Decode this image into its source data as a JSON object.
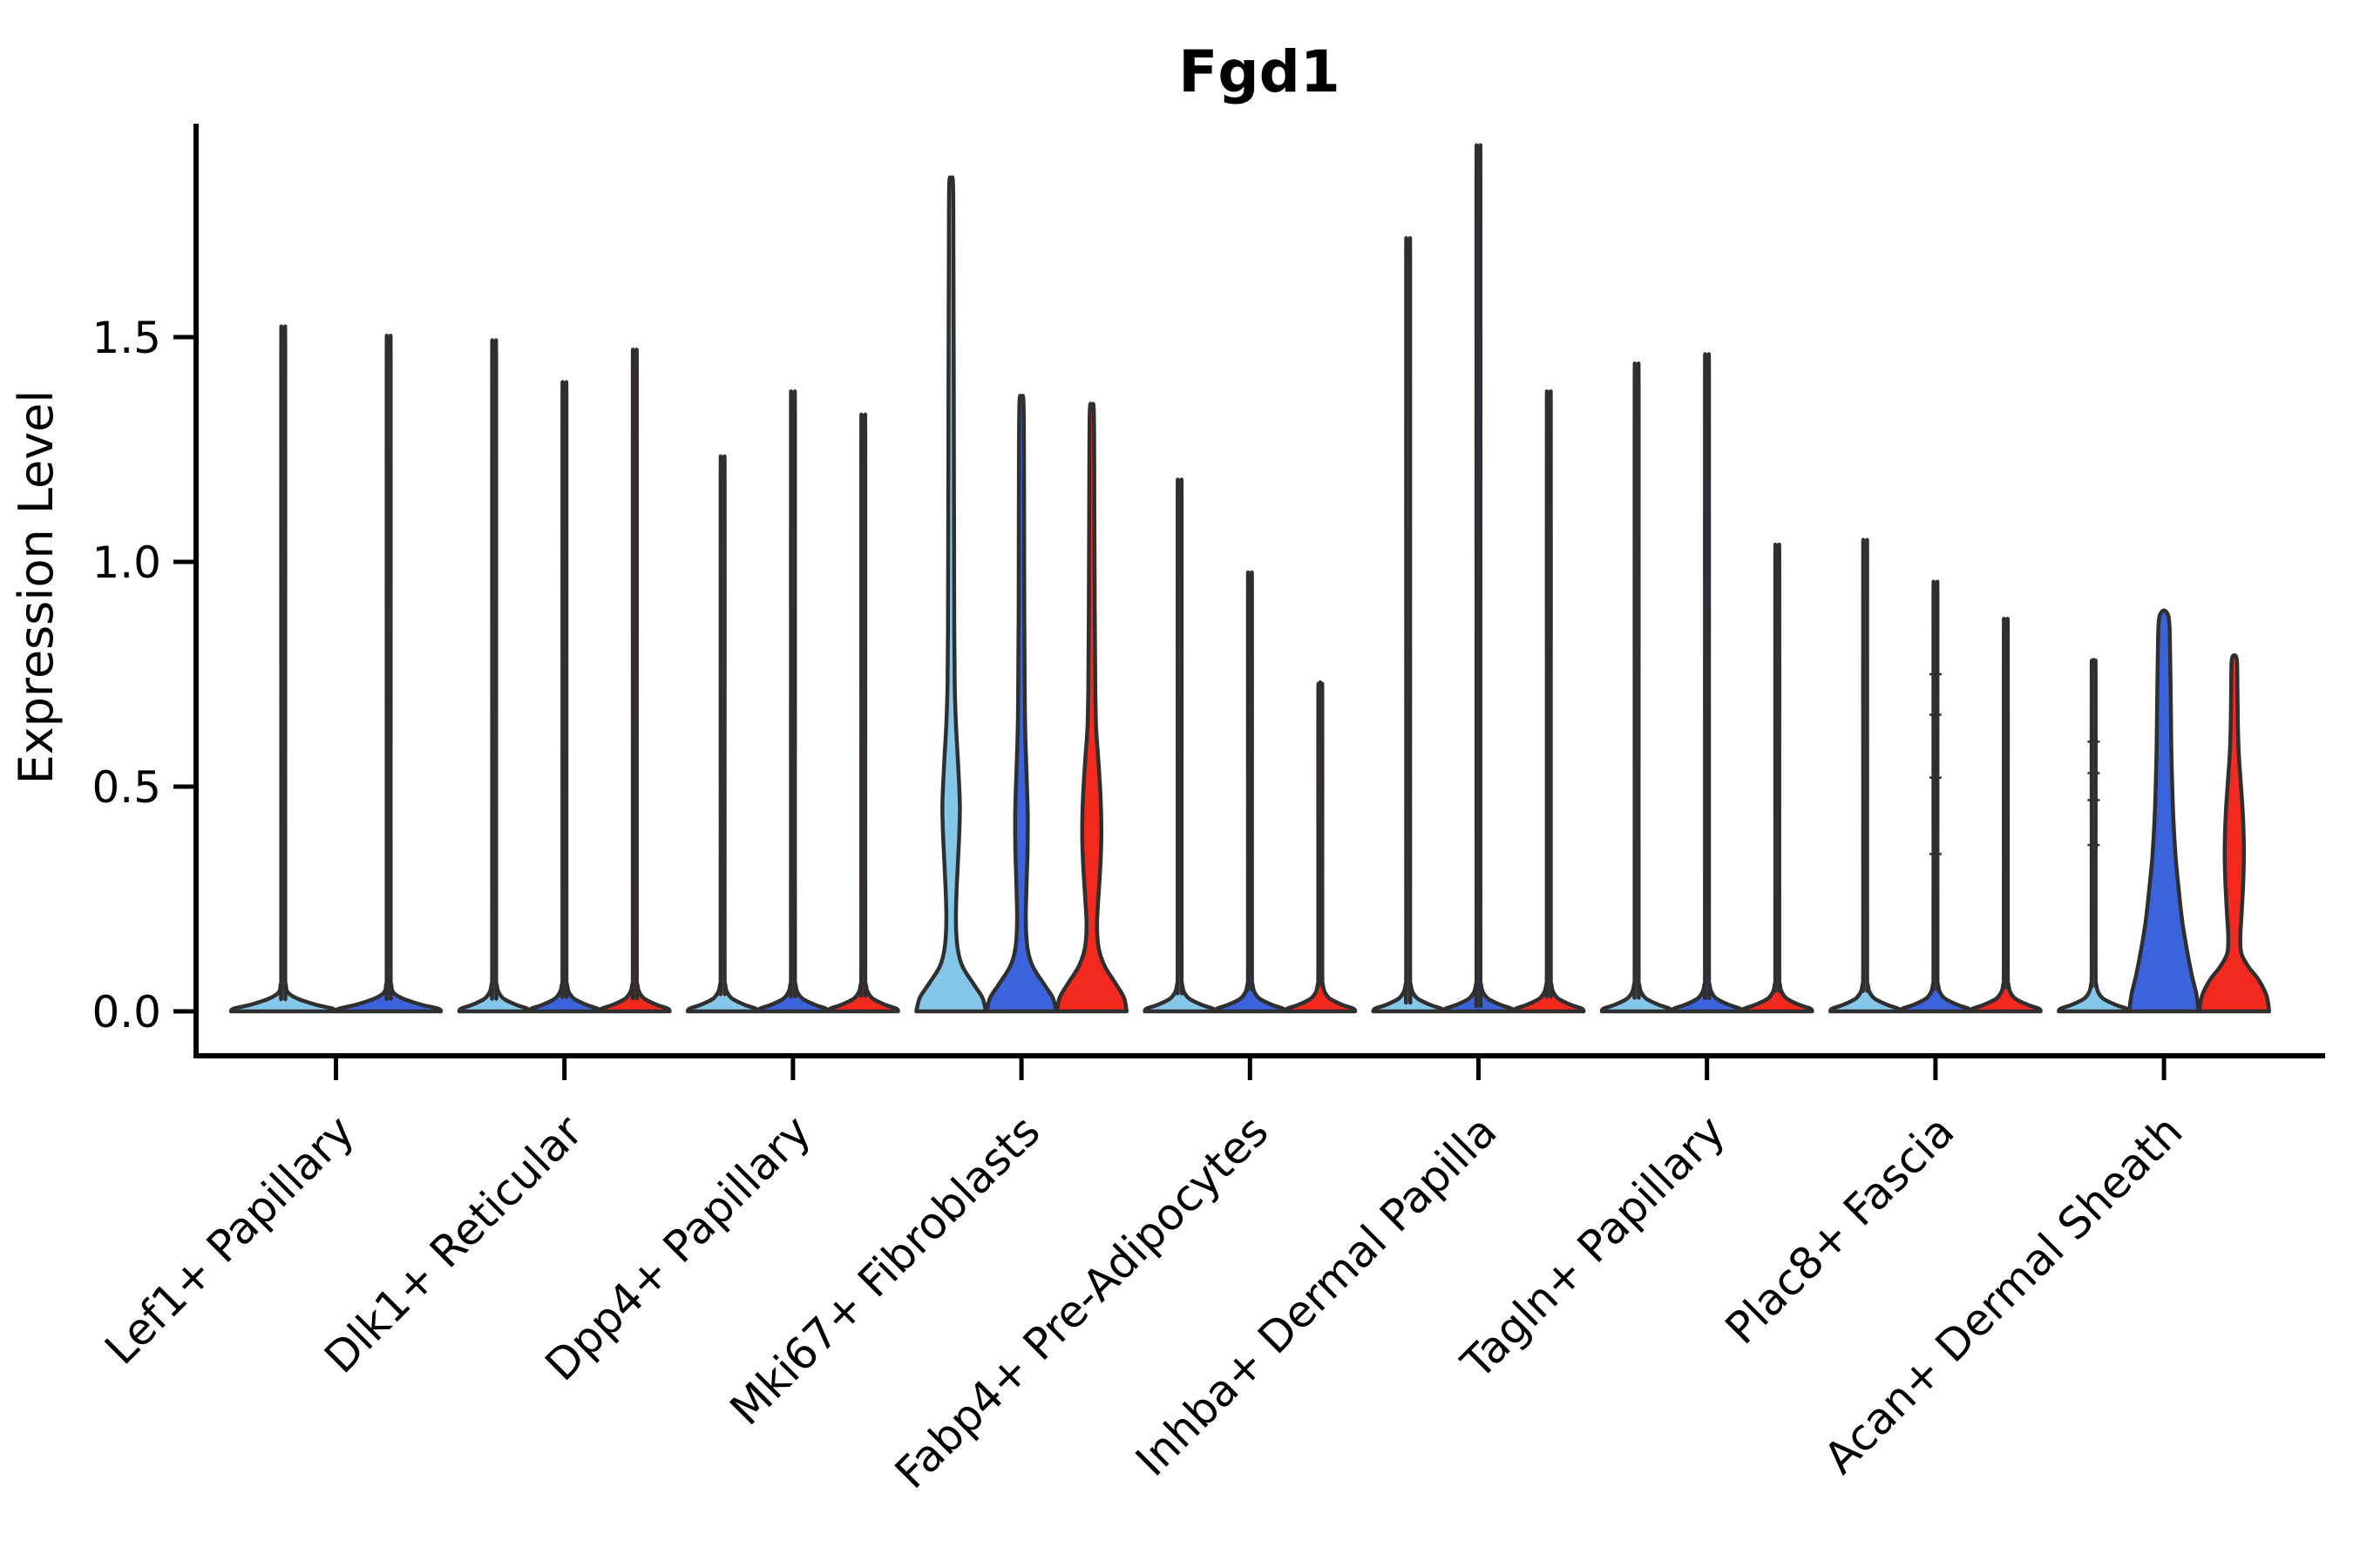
{
  "chart_data": {
    "type": "violin",
    "title": "Fgd1",
    "xlabel": "",
    "ylabel": "Expression Level",
    "ylim": [
      0,
      1.97
    ],
    "yticks": [
      0,
      0.5,
      1.0,
      1.5
    ],
    "ytick_labels": [
      "0.0",
      "0.5",
      "1.0",
      "1.5"
    ],
    "grid": false,
    "legend": "none",
    "outline_color": "#2F2F2F",
    "series_colors": {
      "light-blue": "#85C7E9",
      "blue": "#3B64DC",
      "red": "#F3291D"
    },
    "categories": [
      {
        "label": "Lef1+ Papillary",
        "violins": [
          {
            "series": "light-blue",
            "max": 1.49,
            "offset": -60.5,
            "base_halfwidth": 60,
            "shape": "spike"
          },
          {
            "series": "blue",
            "max": 1.47,
            "offset": 60.5,
            "base_halfwidth": 60,
            "shape": "spike"
          }
        ]
      },
      {
        "label": "Dlk1+ Reticular",
        "violins": [
          {
            "series": "light-blue",
            "max": 1.46,
            "offset": -80.7,
            "base_halfwidth": 40,
            "shape": "spike"
          },
          {
            "series": "blue",
            "max": 1.37,
            "offset": 0,
            "base_halfwidth": 40,
            "shape": "spike"
          },
          {
            "series": "red",
            "max": 1.44,
            "offset": 80.7,
            "base_halfwidth": 40,
            "shape": "spike"
          }
        ]
      },
      {
        "label": "Dpp4+ Papillary",
        "violins": [
          {
            "series": "light-blue",
            "max": 1.21,
            "offset": -80.7,
            "base_halfwidth": 40,
            "shape": "spike"
          },
          {
            "series": "blue",
            "max": 1.35,
            "offset": 0,
            "base_halfwidth": 40,
            "shape": "spike"
          },
          {
            "series": "red",
            "max": 1.3,
            "offset": 80.7,
            "base_halfwidth": 40,
            "shape": "spike"
          }
        ]
      },
      {
        "label": "Mki67+ Fibroblasts",
        "violins": [
          {
            "series": "light-blue",
            "max": 1.84,
            "offset": -80.7,
            "shape": "profile",
            "profile": [
              [
                0,
                40
              ],
              [
                0.03,
                36
              ],
              [
                0.06,
                26
              ],
              [
                0.1,
                13
              ],
              [
                0.14,
                7.5
              ],
              [
                0.2,
                5.5
              ],
              [
                0.28,
                6.5
              ],
              [
                0.38,
                9
              ],
              [
                0.46,
                10
              ],
              [
                0.55,
                8
              ],
              [
                0.64,
                5.5
              ],
              [
                0.72,
                4.2
              ],
              [
                0.85,
                3.6
              ],
              [
                1.1,
                3.3
              ],
              [
                1.4,
                3.0
              ],
              [
                1.7,
                2.6
              ],
              [
                1.84,
                2.2
              ]
            ]
          },
          {
            "series": "blue",
            "max": 1.35,
            "offset": 0,
            "shape": "profile",
            "profile": [
              [
                0,
                40
              ],
              [
                0.03,
                36
              ],
              [
                0.06,
                26
              ],
              [
                0.1,
                13
              ],
              [
                0.14,
                7
              ],
              [
                0.2,
                5
              ],
              [
                0.28,
                5.8
              ],
              [
                0.36,
                7
              ],
              [
                0.44,
                7.2
              ],
              [
                0.52,
                6
              ],
              [
                0.6,
                4.6
              ],
              [
                0.7,
                3.8
              ],
              [
                0.9,
                3.2
              ],
              [
                1.15,
                3.0
              ],
              [
                1.35,
                2.4
              ]
            ]
          },
          {
            "series": "red",
            "max": 1.33,
            "offset": 80.7,
            "shape": "profile",
            "profile": [
              [
                0,
                40
              ],
              [
                0.03,
                37
              ],
              [
                0.06,
                28
              ],
              [
                0.1,
                15
              ],
              [
                0.14,
                8
              ],
              [
                0.19,
                6
              ],
              [
                0.25,
                7.5
              ],
              [
                0.33,
                10
              ],
              [
                0.4,
                11
              ],
              [
                0.48,
                10
              ],
              [
                0.56,
                7.5
              ],
              [
                0.63,
                5
              ],
              [
                0.72,
                4
              ],
              [
                0.9,
                3.4
              ],
              [
                1.1,
                3.0
              ],
              [
                1.33,
                2.4
              ]
            ]
          }
        ]
      },
      {
        "label": "Fabp4+ Pre-Adipocytes",
        "violins": [
          {
            "series": "light-blue",
            "max": 1.16,
            "offset": -80.7,
            "base_halfwidth": 40,
            "shape": "spike"
          },
          {
            "series": "blue",
            "max": 0.96,
            "offset": 0,
            "base_halfwidth": 40,
            "shape": "spike"
          },
          {
            "series": "red",
            "max": 0.72,
            "offset": 80.7,
            "base_halfwidth": 40,
            "shape": "spike"
          }
        ]
      },
      {
        "label": "Inhba+ Dermal Papilla",
        "violins": [
          {
            "series": "light-blue",
            "max": 1.68,
            "offset": -80.7,
            "base_halfwidth": 40,
            "shape": "spike"
          },
          {
            "series": "blue",
            "max": 1.88,
            "offset": 0,
            "base_halfwidth": 40,
            "shape": "spike"
          },
          {
            "series": "red",
            "max": 1.35,
            "offset": 80.7,
            "base_halfwidth": 40,
            "shape": "spike"
          }
        ]
      },
      {
        "label": "Tagln+ Papillary",
        "violins": [
          {
            "series": "light-blue",
            "max": 1.41,
            "offset": -80.7,
            "base_halfwidth": 40,
            "shape": "spike"
          },
          {
            "series": "blue",
            "max": 1.43,
            "offset": 0,
            "base_halfwidth": 40,
            "shape": "spike"
          },
          {
            "series": "red",
            "max": 1.02,
            "offset": 80.7,
            "base_halfwidth": 40,
            "shape": "spike"
          }
        ]
      },
      {
        "label": "Plac8+ Fascia",
        "violins": [
          {
            "series": "light-blue",
            "max": 1.03,
            "offset": -80.7,
            "base_halfwidth": 40,
            "shape": "spike"
          },
          {
            "series": "blue",
            "max": 0.94,
            "offset": 0,
            "base_halfwidth": 40,
            "shape": "spike",
            "marks": [
              0.35,
              0.52,
              0.66,
              0.75
            ]
          },
          {
            "series": "red",
            "max": 0.86,
            "offset": 80.7,
            "base_halfwidth": 40,
            "shape": "spike"
          }
        ]
      },
      {
        "label": "Acan+ Dermal Sheath",
        "violins": [
          {
            "series": "light-blue",
            "max": 0.77,
            "offset": -80.7,
            "base_halfwidth": 40,
            "shape": "spike",
            "marks": [
              0.37,
              0.47,
              0.53,
              0.6
            ]
          },
          {
            "series": "blue",
            "max": 0.88,
            "offset": 0,
            "shape": "profile",
            "profile": [
              [
                0,
                40
              ],
              [
                0.04,
                37
              ],
              [
                0.08,
                32
              ],
              [
                0.14,
                26
              ],
              [
                0.2,
                21
              ],
              [
                0.27,
                17
              ],
              [
                0.34,
                13.5
              ],
              [
                0.42,
                11
              ],
              [
                0.5,
                9.5
              ],
              [
                0.58,
                8.5
              ],
              [
                0.66,
                8
              ],
              [
                0.74,
                7.5
              ],
              [
                0.8,
                7
              ],
              [
                0.85,
                6.5
              ],
              [
                0.88,
                5
              ]
            ]
          },
          {
            "series": "red",
            "max": 0.78,
            "offset": 80.7,
            "shape": "profile",
            "profile": [
              [
                0,
                40
              ],
              [
                0.035,
                37
              ],
              [
                0.07,
                28
              ],
              [
                0.1,
                16
              ],
              [
                0.13,
                8
              ],
              [
                0.17,
                7
              ],
              [
                0.22,
                8.5
              ],
              [
                0.3,
                10.5
              ],
              [
                0.37,
                11
              ],
              [
                0.45,
                9.5
              ],
              [
                0.52,
                7
              ],
              [
                0.58,
                5
              ],
              [
                0.65,
                4
              ],
              [
                0.72,
                3.6
              ],
              [
                0.78,
                3
              ]
            ]
          }
        ]
      }
    ]
  }
}
